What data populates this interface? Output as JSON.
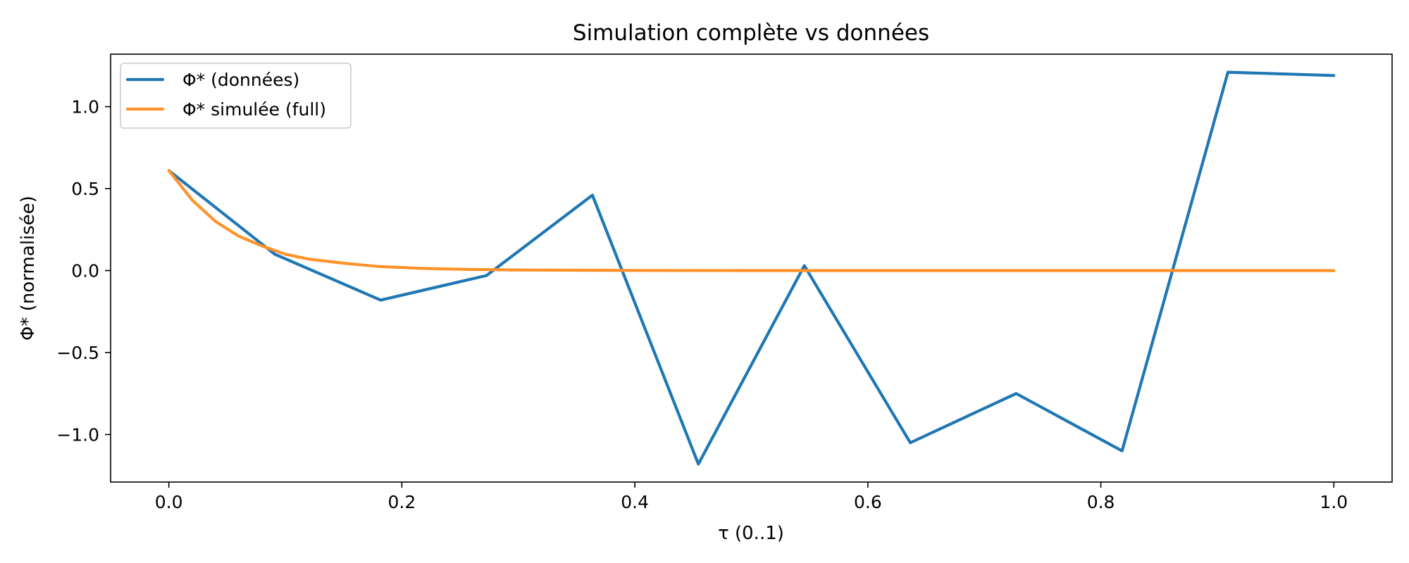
{
  "chart_data": {
    "type": "line",
    "title": "Simulation complète vs données",
    "xlabel": "τ (0..1)",
    "ylabel": "Φ* (normalisée)",
    "xlim": [
      -0.05,
      1.05
    ],
    "ylim": [
      -1.29,
      1.32
    ],
    "grid": false,
    "legend_position": "upper left",
    "xticks": [
      0.0,
      0.2,
      0.4,
      0.6,
      0.8,
      1.0
    ],
    "xtick_labels": [
      "0.0",
      "0.2",
      "0.4",
      "0.6",
      "0.8",
      "1.0"
    ],
    "yticks": [
      -1.0,
      -0.5,
      0.0,
      0.5,
      1.0
    ],
    "ytick_labels": [
      "−1.0",
      "−0.5",
      "0.0",
      "0.5",
      "1.0"
    ],
    "series": [
      {
        "name": "Φ* (données)",
        "color": "#1f77b4",
        "x": [
          0.0,
          0.0909,
          0.1818,
          0.2727,
          0.3636,
          0.4545,
          0.5455,
          0.6364,
          0.7273,
          0.8182,
          0.9091,
          1.0
        ],
        "y": [
          0.61,
          0.1,
          -0.18,
          -0.03,
          0.46,
          -1.18,
          0.03,
          -1.05,
          -0.75,
          -1.1,
          1.21,
          1.19
        ]
      },
      {
        "name": "Φ* simulée (full)",
        "color": "#ff922b",
        "x": [
          0.0,
          0.02,
          0.04,
          0.06,
          0.08,
          0.1,
          0.12,
          0.15,
          0.18,
          0.22,
          0.26,
          0.3,
          0.35,
          0.4,
          0.5,
          0.6,
          0.7,
          0.8,
          0.9,
          1.0
        ],
        "y": [
          0.61,
          0.43,
          0.3,
          0.21,
          0.15,
          0.1,
          0.07,
          0.045,
          0.025,
          0.013,
          0.007,
          0.004,
          0.002,
          0.001,
          0.0,
          0.0,
          0.0,
          0.0,
          0.0,
          0.0
        ]
      }
    ]
  }
}
